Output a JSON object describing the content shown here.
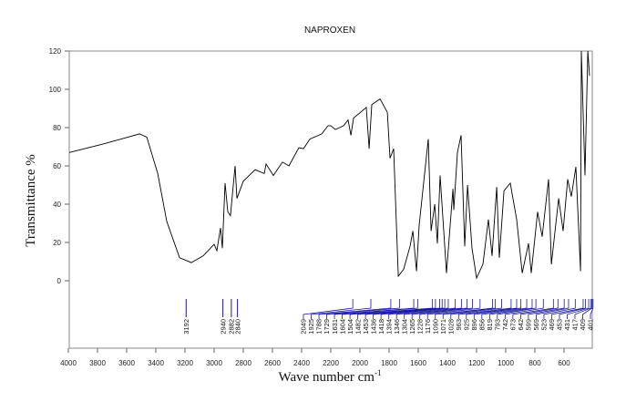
{
  "chart_data": {
    "type": "line",
    "title": "NAPROXEN",
    "xlabel": "Wave number cm",
    "xlabel_sup": "-1",
    "ylabel": "Transmittance %",
    "xlim": [
      4000,
      400
    ],
    "ylim": [
      -35,
      120
    ],
    "x_ticks": [
      4000,
      3800,
      3600,
      3400,
      3200,
      3000,
      2800,
      2600,
      2400,
      2200,
      2000,
      1800,
      1600,
      1400,
      1200,
      1000,
      800,
      600
    ],
    "y_ticks": [
      0,
      20,
      40,
      60,
      80,
      100,
      120
    ],
    "grid": false,
    "series": [
      {
        "name": "spectrum",
        "color": "#000000",
        "points": [
          [
            3994,
            67
          ],
          [
            3763,
            71.4
          ],
          [
            3512,
            76.7
          ],
          [
            3462,
            75
          ],
          [
            3387,
            56
          ],
          [
            3325,
            31
          ],
          [
            3237,
            12
          ],
          [
            3156,
            9.5
          ],
          [
            3075,
            13
          ],
          [
            3000,
            19
          ],
          [
            2981,
            15.7
          ],
          [
            2956,
            27.6
          ],
          [
            2944,
            17
          ],
          [
            2925,
            51
          ],
          [
            2906,
            36
          ],
          [
            2888,
            34
          ],
          [
            2856,
            60
          ],
          [
            2844,
            43
          ],
          [
            2800,
            52
          ],
          [
            2719,
            58
          ],
          [
            2656,
            56
          ],
          [
            2644,
            61
          ],
          [
            2594,
            55
          ],
          [
            2531,
            62
          ],
          [
            2487,
            60
          ],
          [
            2419,
            69.5
          ],
          [
            2387,
            69
          ],
          [
            2344,
            74
          ],
          [
            2262,
            76.7
          ],
          [
            2219,
            81
          ],
          [
            2200,
            81
          ],
          [
            2169,
            79
          ],
          [
            2112,
            81
          ],
          [
            2081,
            84
          ],
          [
            2062,
            76
          ],
          [
            2044,
            85
          ],
          [
            1956,
            90.5
          ],
          [
            1937,
            69
          ],
          [
            1919,
            92
          ],
          [
            1862,
            95
          ],
          [
            1812,
            88
          ],
          [
            1794,
            64
          ],
          [
            1769,
            69
          ],
          [
            1737,
            2.4
          ],
          [
            1700,
            6
          ],
          [
            1656,
            18
          ],
          [
            1637,
            26
          ],
          [
            1612,
            5
          ],
          [
            1594,
            29
          ],
          [
            1531,
            74
          ],
          [
            1512,
            26
          ],
          [
            1487,
            40
          ],
          [
            1469,
            19.5
          ],
          [
            1450,
            55
          ],
          [
            1406,
            4
          ],
          [
            1362,
            48
          ],
          [
            1356,
            37
          ],
          [
            1331,
            67
          ],
          [
            1306,
            76
          ],
          [
            1281,
            18
          ],
          [
            1262,
            50
          ],
          [
            1231,
            17
          ],
          [
            1200,
            1.4
          ],
          [
            1156,
            8.6
          ],
          [
            1119,
            32
          ],
          [
            1094,
            13
          ],
          [
            1062,
            49
          ],
          [
            1044,
            12
          ],
          [
            1012,
            47
          ],
          [
            969,
            51
          ],
          [
            925,
            32
          ],
          [
            887,
            4
          ],
          [
            844,
            19.5
          ],
          [
            825,
            4
          ],
          [
            781,
            36
          ],
          [
            750,
            23
          ],
          [
            706,
            53
          ],
          [
            687,
            8.6
          ],
          [
            637,
            43
          ],
          [
            606,
            26
          ],
          [
            575,
            53
          ],
          [
            550,
            44
          ],
          [
            519,
            59.5
          ],
          [
            487,
            5
          ],
          [
            481,
            120
          ],
          [
            456,
            55
          ],
          [
            437,
            120
          ],
          [
            425,
            107
          ]
        ]
      }
    ],
    "peak_color": "#1a1aa0",
    "peaks_direct": [
      "3192",
      "2940",
      "2882",
      "2840"
    ],
    "peaks_fanned": [
      "2049",
      "1925",
      "1788",
      "1729",
      "1631",
      "1604",
      "1504",
      "1482",
      "1453",
      "1436",
      "1418",
      "1394",
      "1346",
      "1304",
      "1265",
      "1228",
      "1176",
      "1090",
      "1071",
      "1028",
      "963",
      "925",
      "896",
      "856",
      "819",
      "793",
      "742",
      "673",
      "642",
      "599",
      "569",
      "523",
      "469",
      "453",
      "431",
      "417",
      "409",
      "401"
    ]
  }
}
